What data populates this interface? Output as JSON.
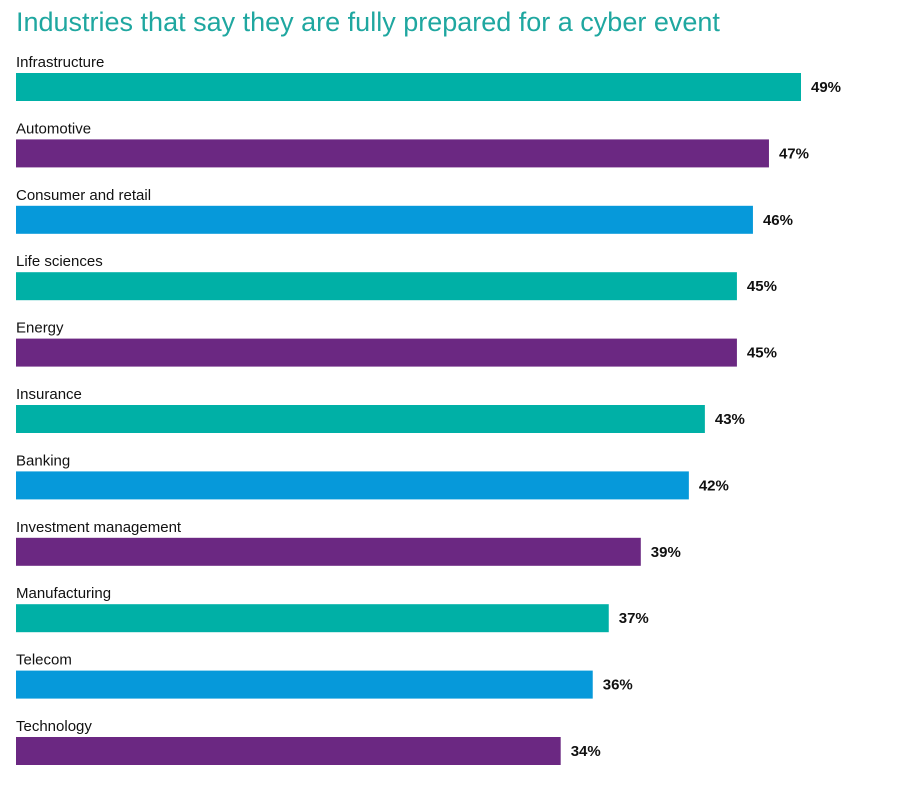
{
  "title": "Industries that say they are fully prepared for a cyber event",
  "colors": {
    "teal": "#00b0a6",
    "purple": "#6b2882",
    "blue": "#0699da",
    "title": "#1fa7a0"
  },
  "chart_data": {
    "type": "bar",
    "orientation": "horizontal",
    "title": "Industries that say they are fully prepared for a cyber event",
    "categories": [
      "Infrastructure",
      "Automotive",
      "Consumer and retail",
      "Life sciences",
      "Energy",
      "Insurance",
      "Banking",
      "Investment management",
      "Manufacturing",
      "Telecom",
      "Technology"
    ],
    "values": [
      49,
      47,
      46,
      45,
      45,
      43,
      42,
      39,
      37,
      36,
      34
    ],
    "value_labels": [
      "49%",
      "47%",
      "46%",
      "45%",
      "45%",
      "43%",
      "42%",
      "39%",
      "37%",
      "36%",
      "34%"
    ],
    "bar_colors": [
      "teal",
      "purple",
      "blue",
      "teal",
      "purple",
      "teal",
      "blue",
      "purple",
      "teal",
      "blue",
      "purple"
    ],
    "xlim": [
      0,
      49
    ],
    "grid": false,
    "legend": "none"
  }
}
